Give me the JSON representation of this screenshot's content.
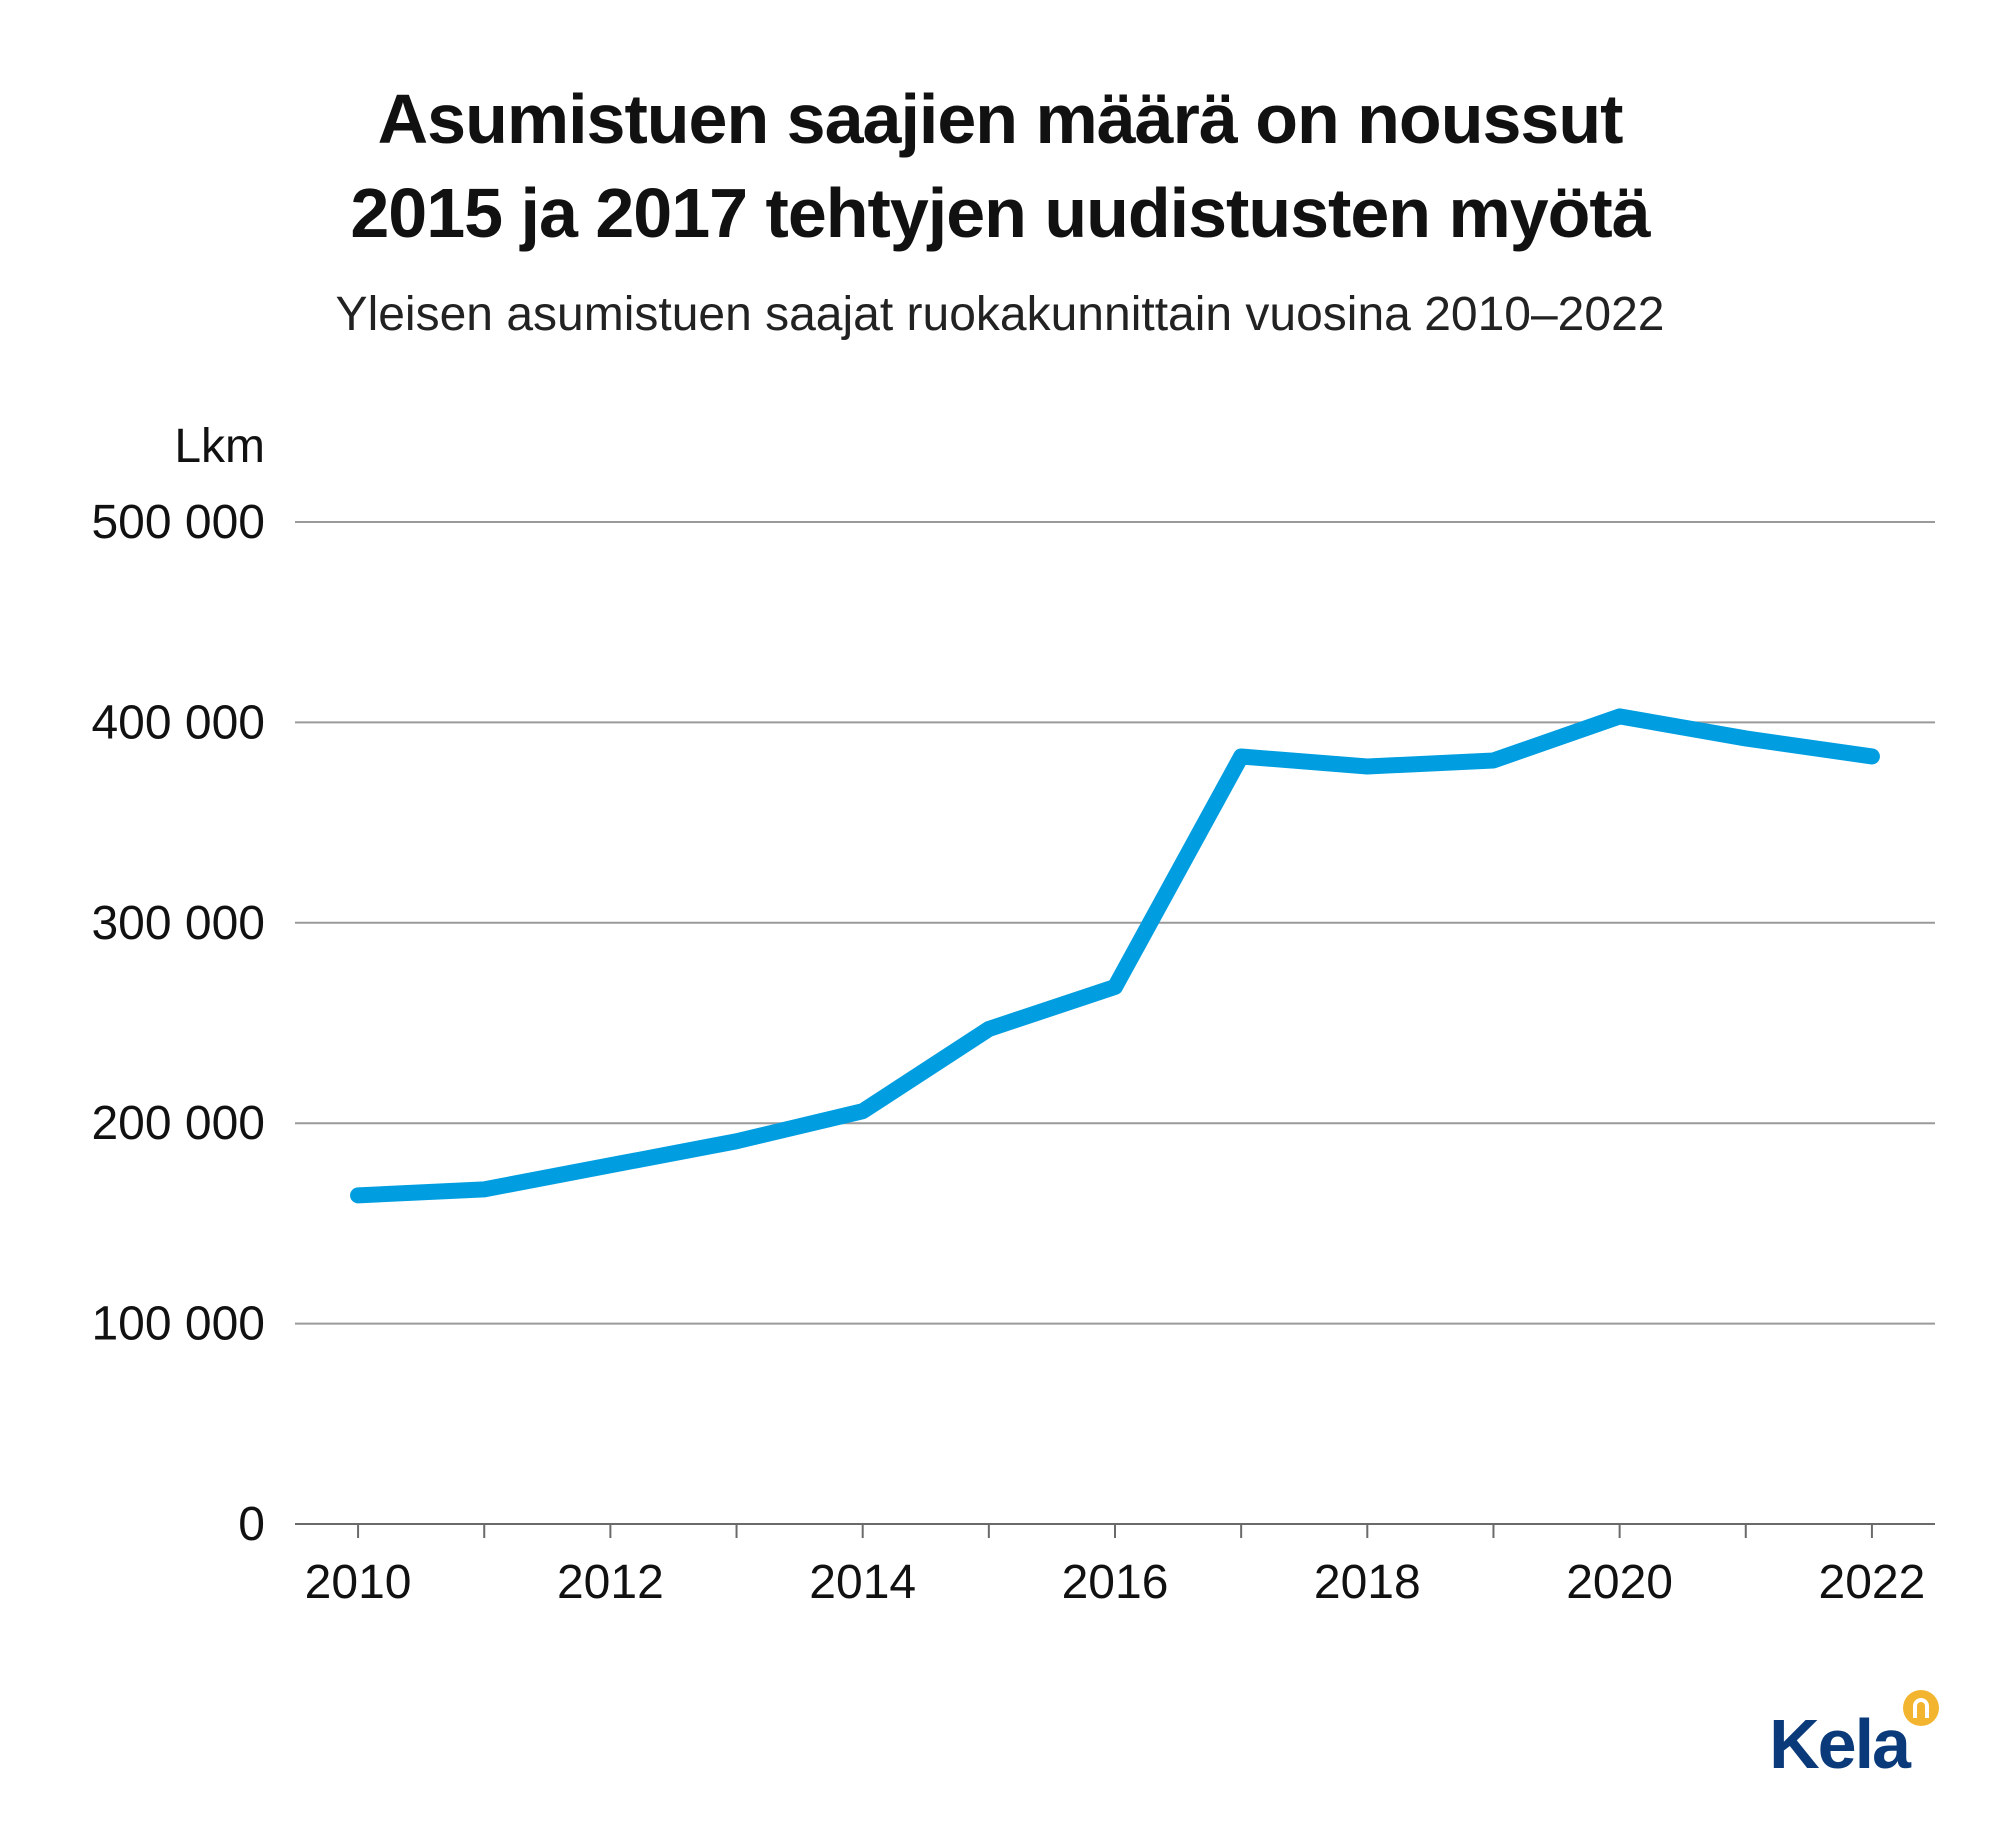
{
  "header": {
    "title_line_1": "Asumistuen saajien määrä on noussut",
    "title_line_2": "2015 ja 2017 tehtyjen uudistusten myötä",
    "subtitle": "Yleisen asumistuen saajat ruokakunnittain vuosina 2010–2022"
  },
  "brand": {
    "name": "Kela",
    "text_color": "#0a3a7a",
    "mark_color": "#f3b52f",
    "logo_icon": "kela-logo-mark-icon"
  },
  "chart_data": {
    "type": "line",
    "title": "Asumistuen saajien määrä on noussut 2015 ja 2017 tehtyjen uudistusten myötä",
    "subtitle": "Yleisen asumistuen saajat ruokakunnittain vuosina 2010–2022",
    "ylabel": "Lkm",
    "xlabel": "",
    "x": [
      2010,
      2011,
      2012,
      2013,
      2014,
      2015,
      2016,
      2017,
      2018,
      2019,
      2020,
      2021,
      2022
    ],
    "x_tick_labels": [
      "2010",
      "2012",
      "2014",
      "2016",
      "2018",
      "2020",
      "2022"
    ],
    "x_tick_values": [
      2010,
      2012,
      2014,
      2016,
      2018,
      2020,
      2022
    ],
    "xlim": [
      2009.5,
      2022.5
    ],
    "ylim": [
      0,
      500000
    ],
    "y_ticks": [
      0,
      100000,
      200000,
      300000,
      400000,
      500000
    ],
    "y_tick_labels": [
      "0",
      "100 000",
      "200 000",
      "300 000",
      "400 000",
      "500 000"
    ],
    "grid": "horizontal",
    "series": [
      {
        "color": "#009ee0",
        "values": [
          164000,
          167000,
          179000,
          191000,
          206000,
          247000,
          268000,
          383000,
          378000,
          381000,
          403000,
          392000,
          383000
        ]
      }
    ]
  }
}
